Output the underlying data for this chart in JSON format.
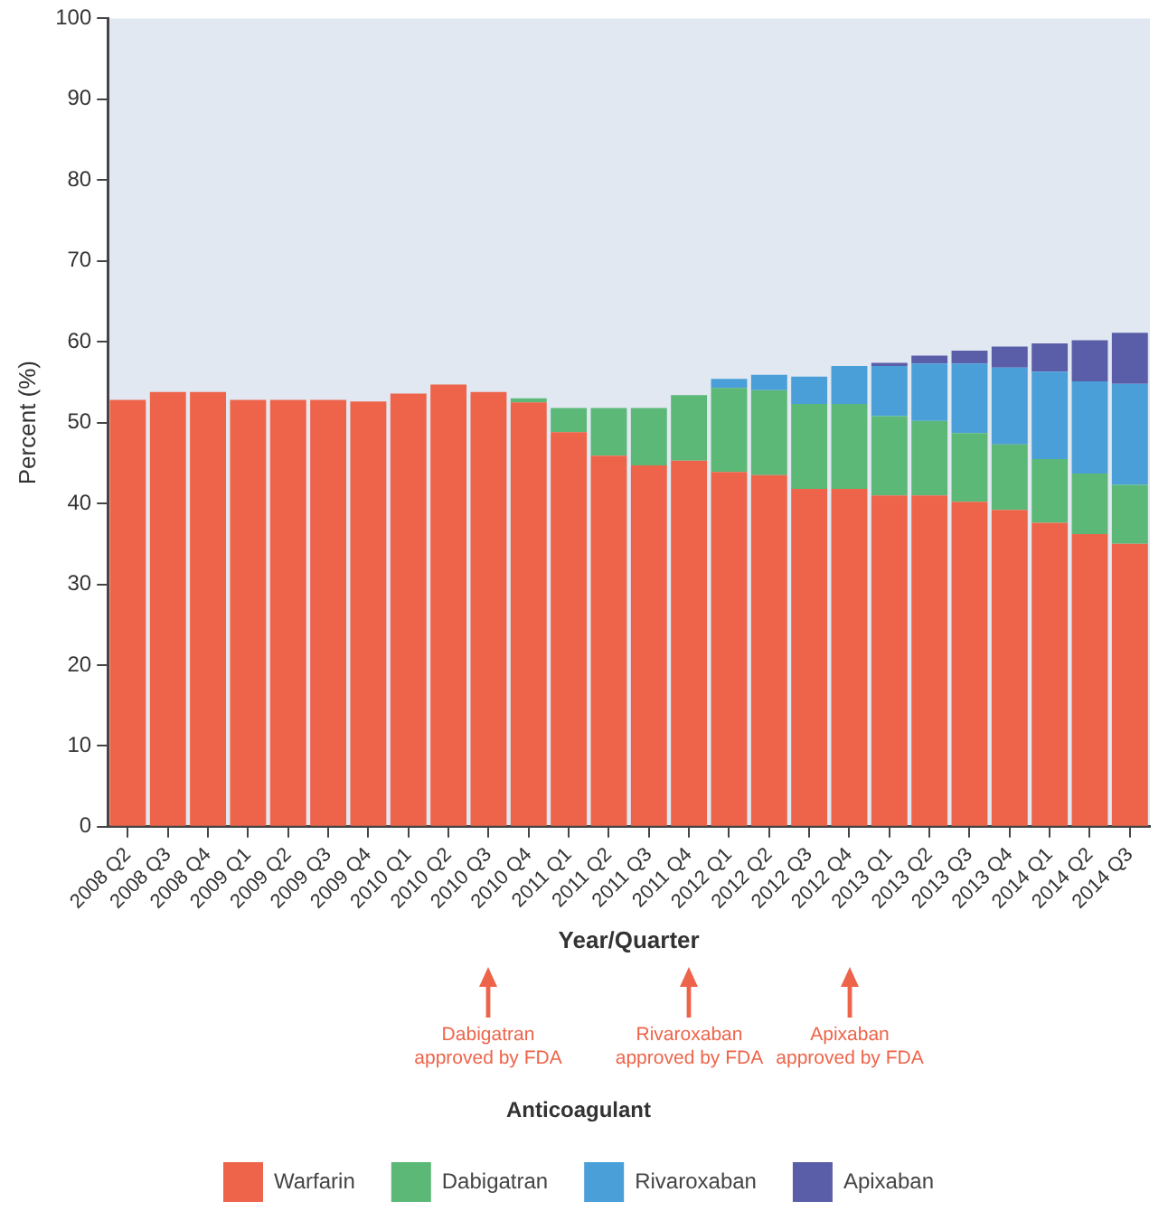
{
  "chart_data": {
    "type": "bar",
    "stacked": true,
    "xlabel": "Year/Quarter",
    "ylabel": "Percent (%)",
    "legend_title": "Anticoagulant",
    "legend": "bottom",
    "grid": false,
    "categories": [
      "2008 Q2",
      "2008 Q3",
      "2008 Q4",
      "2009 Q1",
      "2009 Q2",
      "2009 Q3",
      "2009 Q4",
      "2010 Q1",
      "2010 Q2",
      "2010 Q3",
      "2010 Q4",
      "2011 Q1",
      "2011 Q2",
      "2011 Q3",
      "2011 Q4",
      "2012 Q1",
      "2012 Q2",
      "2012 Q3",
      "2012 Q4",
      "2013 Q1",
      "2013 Q2",
      "2013 Q3",
      "2013 Q4",
      "2014 Q1",
      "2014 Q2",
      "2014 Q3"
    ],
    "ylim": [
      0,
      100
    ],
    "yticks": [
      0,
      10,
      20,
      30,
      40,
      50,
      60,
      70,
      80,
      90,
      100
    ],
    "series": [
      {
        "name": "Warfarin",
        "color": "#ee644a",
        "values": [
          52.8,
          53.8,
          53.8,
          52.8,
          52.8,
          52.8,
          52.6,
          53.6,
          54.7,
          53.8,
          52.5,
          48.8,
          45.9,
          44.7,
          45.3,
          43.9,
          43.5,
          41.8,
          41.8,
          41.0,
          41.0,
          40.2,
          39.2,
          37.6,
          36.2,
          35.0
        ]
      },
      {
        "name": "Dabigatran",
        "color": "#5bb877",
        "values": [
          null,
          null,
          null,
          null,
          null,
          null,
          null,
          null,
          null,
          null,
          0.5,
          3.0,
          5.9,
          7.1,
          8.1,
          10.4,
          10.5,
          10.5,
          10.5,
          9.8,
          9.2,
          8.5,
          8.1,
          7.9,
          7.5,
          7.3
        ]
      },
      {
        "name": "Rivaroxaban",
        "color": "#4a9fd8",
        "values": [
          null,
          null,
          null,
          null,
          null,
          null,
          null,
          null,
          null,
          null,
          null,
          null,
          null,
          null,
          null,
          1.1,
          1.9,
          3.4,
          4.7,
          6.2,
          7.1,
          8.6,
          9.5,
          10.8,
          11.4,
          12.5
        ]
      },
      {
        "name": "Apixaban",
        "color": "#5a5ea8",
        "values": [
          null,
          null,
          null,
          null,
          null,
          null,
          null,
          null,
          null,
          null,
          null,
          null,
          null,
          null,
          null,
          null,
          null,
          null,
          null,
          0.4,
          1.0,
          1.6,
          2.6,
          3.5,
          5.1,
          6.3
        ]
      }
    ],
    "annotations": [
      "Dabigatran\napproved by FDA",
      "Rivaroxaban\napproved by FDA",
      "Apixaban\napproved by FDA"
    ]
  }
}
